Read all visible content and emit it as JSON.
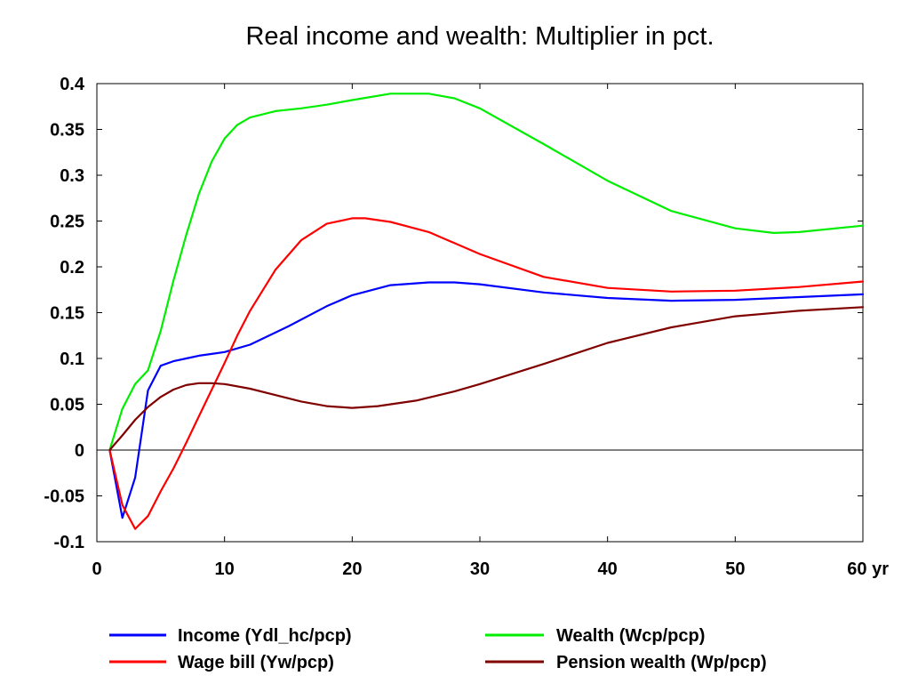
{
  "chart_data": {
    "type": "line",
    "title": "Real income and wealth: Multiplier in pct.",
    "xlabel": "",
    "ylabel": "",
    "x_unit_suffix": "yr",
    "xlim": [
      0,
      60
    ],
    "ylim": [
      -0.1,
      0.4
    ],
    "x_ticks": [
      0,
      10,
      20,
      30,
      40,
      50,
      60
    ],
    "x_tick_labels": [
      "0",
      "10",
      "20",
      "30",
      "40",
      "50",
      "60 yr"
    ],
    "y_ticks": [
      -0.1,
      -0.05,
      0,
      0.05,
      0.1,
      0.15,
      0.2,
      0.25,
      0.3,
      0.35,
      0.4
    ],
    "y_tick_labels": [
      "-0.1",
      "-0.05",
      "0",
      "0.05",
      "0.1",
      "0.15",
      "0.2",
      "0.25",
      "0.3",
      "0.35",
      "0.4"
    ],
    "grid": false,
    "zero_line": true,
    "legend_position": "bottom",
    "series": [
      {
        "name": "Income (Ydl_hc/pcp)",
        "color": "#0000ff",
        "x": [
          1,
          2,
          3,
          4,
          5,
          6,
          7,
          8,
          9,
          10,
          12,
          15,
          18,
          20,
          23,
          26,
          28,
          30,
          35,
          40,
          45,
          50,
          55,
          60
        ],
        "y": [
          0,
          -0.074,
          -0.03,
          0.065,
          0.092,
          0.097,
          0.1,
          0.103,
          0.105,
          0.107,
          0.115,
          0.135,
          0.157,
          0.169,
          0.18,
          0.183,
          0.183,
          0.181,
          0.172,
          0.166,
          0.163,
          0.164,
          0.167,
          0.17
        ]
      },
      {
        "name": "Wage bill (Yw/pcp)",
        "color": "#ff0000",
        "x": [
          1,
          2,
          3,
          4,
          5,
          6,
          7,
          8,
          9,
          10,
          11,
          12,
          14,
          16,
          18,
          20,
          21,
          23,
          26,
          30,
          35,
          40,
          45,
          50,
          55,
          60
        ],
        "y": [
          0,
          -0.06,
          -0.086,
          -0.072,
          -0.045,
          -0.02,
          0.008,
          0.037,
          0.066,
          0.095,
          0.125,
          0.152,
          0.197,
          0.229,
          0.247,
          0.253,
          0.253,
          0.249,
          0.238,
          0.214,
          0.189,
          0.177,
          0.173,
          0.174,
          0.178,
          0.184
        ]
      },
      {
        "name": "Wealth (Wcp/pcp)",
        "color": "#00ee00",
        "x": [
          1,
          2,
          3,
          4,
          5,
          6,
          7,
          8,
          9,
          10,
          11,
          12,
          14,
          16,
          18,
          20,
          23,
          26,
          28,
          30,
          35,
          40,
          45,
          50,
          53,
          55,
          60
        ],
        "y": [
          0,
          0.045,
          0.072,
          0.087,
          0.13,
          0.185,
          0.235,
          0.28,
          0.315,
          0.34,
          0.355,
          0.363,
          0.37,
          0.373,
          0.377,
          0.382,
          0.389,
          0.389,
          0.384,
          0.373,
          0.334,
          0.294,
          0.261,
          0.242,
          0.237,
          0.238,
          0.245
        ]
      },
      {
        "name": "Pension wealth (Wp/pcp)",
        "color": "#800000",
        "x": [
          1,
          2,
          3,
          4,
          5,
          6,
          7,
          8,
          9,
          10,
          12,
          14,
          16,
          18,
          20,
          22,
          25,
          28,
          30,
          35,
          40,
          45,
          50,
          55,
          60
        ],
        "y": [
          0,
          0.016,
          0.033,
          0.047,
          0.058,
          0.066,
          0.071,
          0.073,
          0.073,
          0.072,
          0.067,
          0.06,
          0.053,
          0.048,
          0.046,
          0.048,
          0.054,
          0.064,
          0.072,
          0.094,
          0.117,
          0.134,
          0.146,
          0.152,
          0.156
        ]
      }
    ]
  }
}
